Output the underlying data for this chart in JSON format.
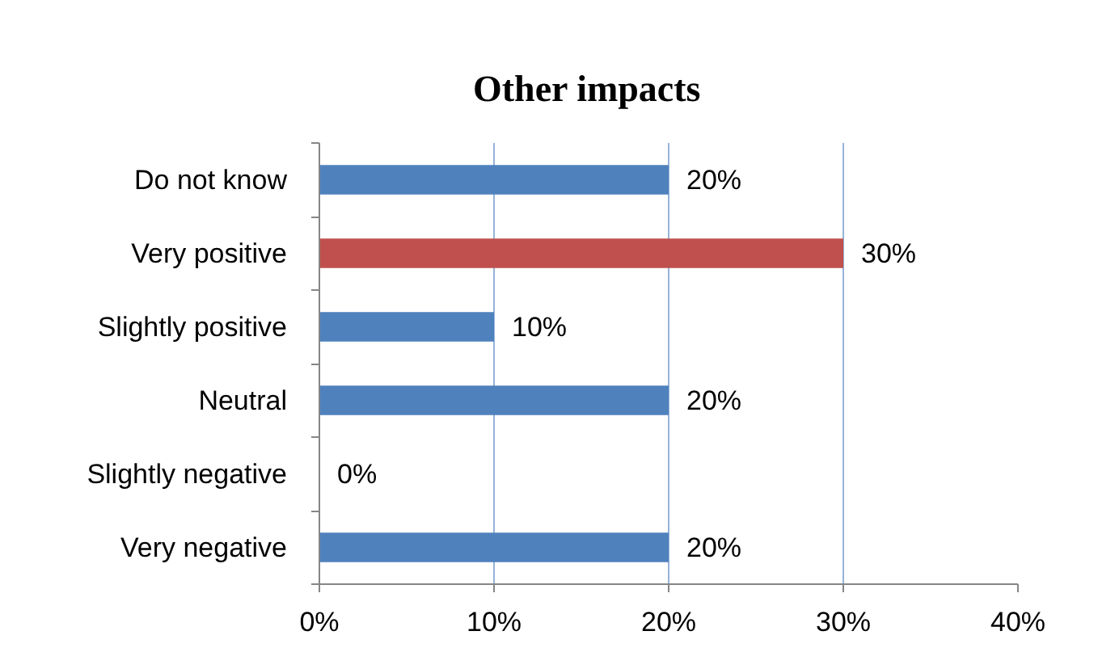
{
  "chart_data": {
    "type": "bar",
    "orientation": "horizontal",
    "title": "Other impacts",
    "categories": [
      "Do not know",
      "Very positive",
      "Slightly positive",
      "Neutral",
      "Slightly negative",
      "Very negative"
    ],
    "values": [
      20,
      30,
      10,
      20,
      0,
      20
    ],
    "colors": [
      "#4f81bd",
      "#c0504d",
      "#4f81bd",
      "#4f81bd",
      "#4f81bd",
      "#4f81bd"
    ],
    "value_labels": [
      "20%",
      "30%",
      "10%",
      "20%",
      "0%",
      "20%"
    ],
    "xlim": [
      0,
      40
    ],
    "xticks": [
      {
        "value": 0,
        "label": "0%"
      },
      {
        "value": 10,
        "label": "10%"
      },
      {
        "value": 20,
        "label": "20%"
      },
      {
        "value": 30,
        "label": "30%"
      },
      {
        "value": 40,
        "label": "40%"
      }
    ],
    "grid": "x"
  }
}
